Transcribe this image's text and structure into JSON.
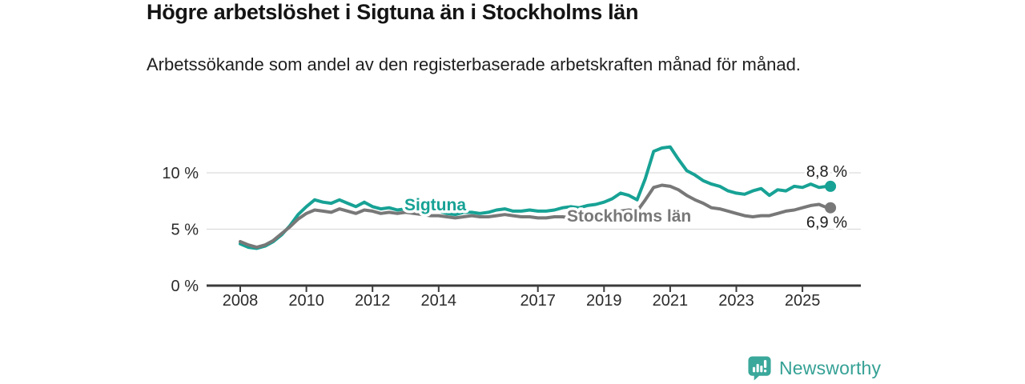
{
  "header": {
    "title": "Högre arbetslöshet i Sigtuna än i Stockholms län",
    "subtitle": "Arbetssökande som andel av den registerbaserade arbetskraften månad för månad."
  },
  "logo": {
    "text": "Newsworthy",
    "icon": "newsworthy-bubble-chart-icon",
    "color": "#3aa89b"
  },
  "colors": {
    "sigtuna_line": "#17a295",
    "stockholm_line": "#787878",
    "gridline": "#dcdcdc",
    "axis": "#3b3b3b",
    "tick_label": "#2b2b2b",
    "end_label": "#1d1d1d",
    "title_text": "#141414"
  },
  "chart_data": {
    "type": "line",
    "title": "Högre arbetslöshet i Sigtuna än i Stockholms län",
    "subtitle": "Arbetssökande som andel av den registerbaserade arbetskraften månad för månad.",
    "unit": "%",
    "grid": "horizontal",
    "legend_position": "inline-on-line",
    "xlim": [
      2007,
      2026.8
    ],
    "ylim": [
      0,
      14
    ],
    "xticks": [
      2008,
      2010,
      2012,
      2014,
      2017,
      2019,
      2021,
      2023,
      2025
    ],
    "xtick_labels": [
      "2008",
      "2010",
      "2012",
      "2014",
      "2017",
      "2019",
      "2021",
      "2023",
      "2025"
    ],
    "yticks": [
      0,
      5,
      10
    ],
    "ytick_labels": [
      "0 %",
      "5 %",
      "10 %"
    ],
    "x": [
      2008.0,
      2008.25,
      2008.5,
      2008.75,
      2009.0,
      2009.25,
      2009.5,
      2009.75,
      2010.0,
      2010.25,
      2010.5,
      2010.75,
      2011.0,
      2011.25,
      2011.5,
      2011.75,
      2012.0,
      2012.25,
      2012.5,
      2012.75,
      2013.0,
      2013.25,
      2013.5,
      2013.75,
      2014.0,
      2014.25,
      2014.5,
      2014.75,
      2015.0,
      2015.25,
      2015.5,
      2015.75,
      2016.0,
      2016.25,
      2016.5,
      2016.75,
      2017.0,
      2017.25,
      2017.5,
      2017.75,
      2018.0,
      2018.25,
      2018.5,
      2018.75,
      2019.0,
      2019.25,
      2019.5,
      2019.75,
      2020.0,
      2020.25,
      2020.5,
      2020.75,
      2021.0,
      2021.25,
      2021.5,
      2021.75,
      2022.0,
      2022.25,
      2022.5,
      2022.75,
      2023.0,
      2023.25,
      2023.5,
      2023.75,
      2024.0,
      2024.25,
      2024.5,
      2024.75,
      2025.0,
      2025.25,
      2025.5,
      2025.75
    ],
    "series": [
      {
        "name": "Sigtuna",
        "color": "#17a295",
        "end_label": "8,8 %",
        "end_value": 8.8,
        "values": [
          3.7,
          3.4,
          3.3,
          3.5,
          3.9,
          4.5,
          5.3,
          6.3,
          7.0,
          7.6,
          7.4,
          7.3,
          7.6,
          7.3,
          7.0,
          7.4,
          7.0,
          6.8,
          6.9,
          6.7,
          6.8,
          7.0,
          7.0,
          6.9,
          6.6,
          6.4,
          6.3,
          6.5,
          6.5,
          6.4,
          6.5,
          6.7,
          6.8,
          6.6,
          6.6,
          6.7,
          6.6,
          6.6,
          6.7,
          6.9,
          7.0,
          6.9,
          7.1,
          7.2,
          7.4,
          7.7,
          8.2,
          8.0,
          7.6,
          9.5,
          11.9,
          12.2,
          12.3,
          11.2,
          10.2,
          9.8,
          9.3,
          9.0,
          8.8,
          8.4,
          8.2,
          8.1,
          8.4,
          8.6,
          8.0,
          8.5,
          8.4,
          8.8,
          8.7,
          9.0,
          8.7,
          8.8
        ]
      },
      {
        "name": "Stockholms län",
        "color": "#787878",
        "end_label": "6,9 %",
        "end_value": 6.9,
        "values": [
          3.9,
          3.6,
          3.4,
          3.6,
          4.0,
          4.6,
          5.2,
          5.9,
          6.4,
          6.7,
          6.6,
          6.5,
          6.8,
          6.6,
          6.4,
          6.7,
          6.6,
          6.4,
          6.5,
          6.4,
          6.5,
          6.4,
          6.3,
          6.2,
          6.2,
          6.1,
          6.0,
          6.1,
          6.2,
          6.1,
          6.1,
          6.2,
          6.3,
          6.2,
          6.1,
          6.1,
          6.0,
          6.0,
          6.1,
          6.1,
          6.0,
          5.9,
          5.9,
          6.0,
          6.1,
          6.3,
          6.6,
          6.7,
          6.6,
          7.6,
          8.7,
          8.9,
          8.8,
          8.5,
          8.0,
          7.6,
          7.3,
          6.9,
          6.8,
          6.6,
          6.4,
          6.2,
          6.1,
          6.2,
          6.2,
          6.4,
          6.6,
          6.7,
          6.9,
          7.1,
          7.2,
          6.9
        ]
      }
    ]
  }
}
